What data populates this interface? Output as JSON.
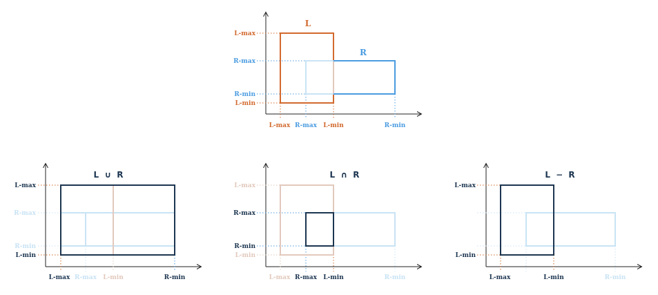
{
  "colors": {
    "orange": "#d2692e",
    "blue": "#4a9be0",
    "navy": "#1c3550",
    "faint_orange": "#e2c9bd",
    "faint_blue": "#c9e3f4"
  },
  "top": {
    "rect_l_label": "L",
    "rect_r_label": "R",
    "y_labels": {
      "l_max": "L-max",
      "r_max": "R-max",
      "r_min": "R-min",
      "l_min": "L-min"
    },
    "x_labels": {
      "l_max": "L-max",
      "r_max": "R-max",
      "l_min": "L-min",
      "r_min": "R-min"
    }
  },
  "union": {
    "title": "L ∪ R",
    "y_labels": {
      "l_max": "L-max",
      "r_max": "R-max",
      "r_min": "R-min",
      "l_min": "L-min"
    },
    "x_labels": {
      "l_max": "L-max",
      "r_max": "R-max",
      "l_min": "L-min",
      "r_min": "R-min"
    }
  },
  "intersection": {
    "title": "L ∩ R",
    "y_labels": {
      "l_max": "L-max",
      "r_max": "R-max",
      "r_min": "R-min",
      "l_min": "L-min"
    },
    "x_labels": {
      "l_max": "L-max",
      "r_max": "R-max",
      "l_min": "L-min",
      "r_min": "R-min"
    }
  },
  "difference": {
    "title": "L − R",
    "y_labels": {
      "l_max": "L-max",
      "l_min": "L-min"
    },
    "x_labels": {
      "l_max": "L-max",
      "l_min": "L-min",
      "r_min": "R-min"
    }
  }
}
